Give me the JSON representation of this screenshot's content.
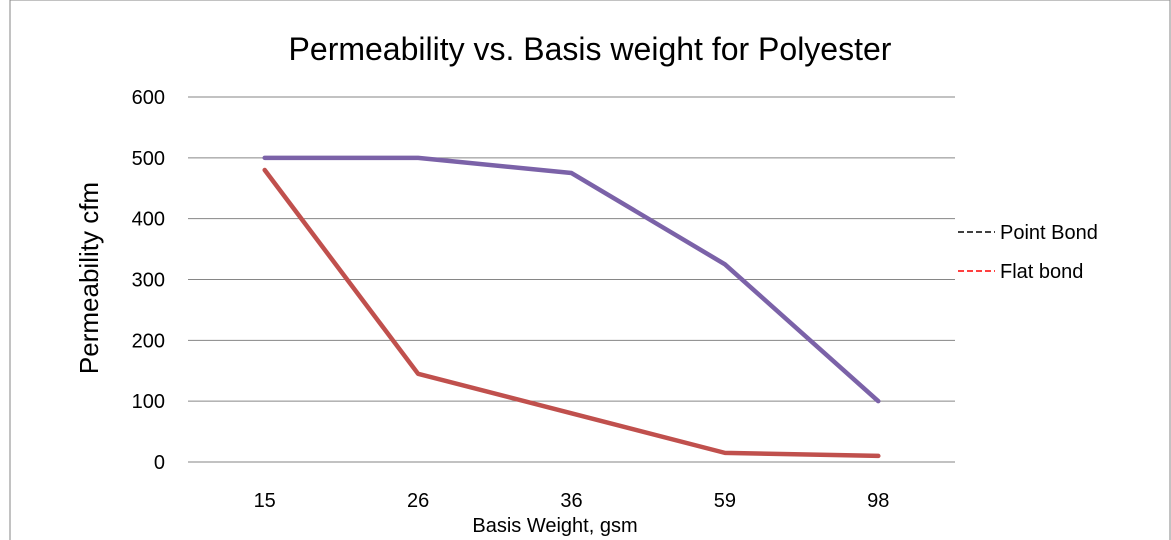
{
  "chart_data": {
    "type": "line",
    "title": "Permeability vs. Basis weight for Polyester",
    "xlabel": "Basis Weight, gsm",
    "ylabel": "Permeability cfm",
    "categories": [
      "15",
      "26",
      "36",
      "59",
      "98"
    ],
    "ylim": [
      0,
      600
    ],
    "yticks": [
      "0",
      "100",
      "200",
      "300",
      "400",
      "500",
      "600"
    ],
    "grid": true,
    "legend_position": "right",
    "series": [
      {
        "name": "Point Bond",
        "values": [
          500,
          500,
          475,
          325,
          100
        ],
        "color": "#7b62a8",
        "legend_color": "#000000"
      },
      {
        "name": "Flat bond",
        "values": [
          480,
          145,
          80,
          15,
          10
        ],
        "color": "#c0504d",
        "legend_color": "#ff0000"
      }
    ]
  }
}
